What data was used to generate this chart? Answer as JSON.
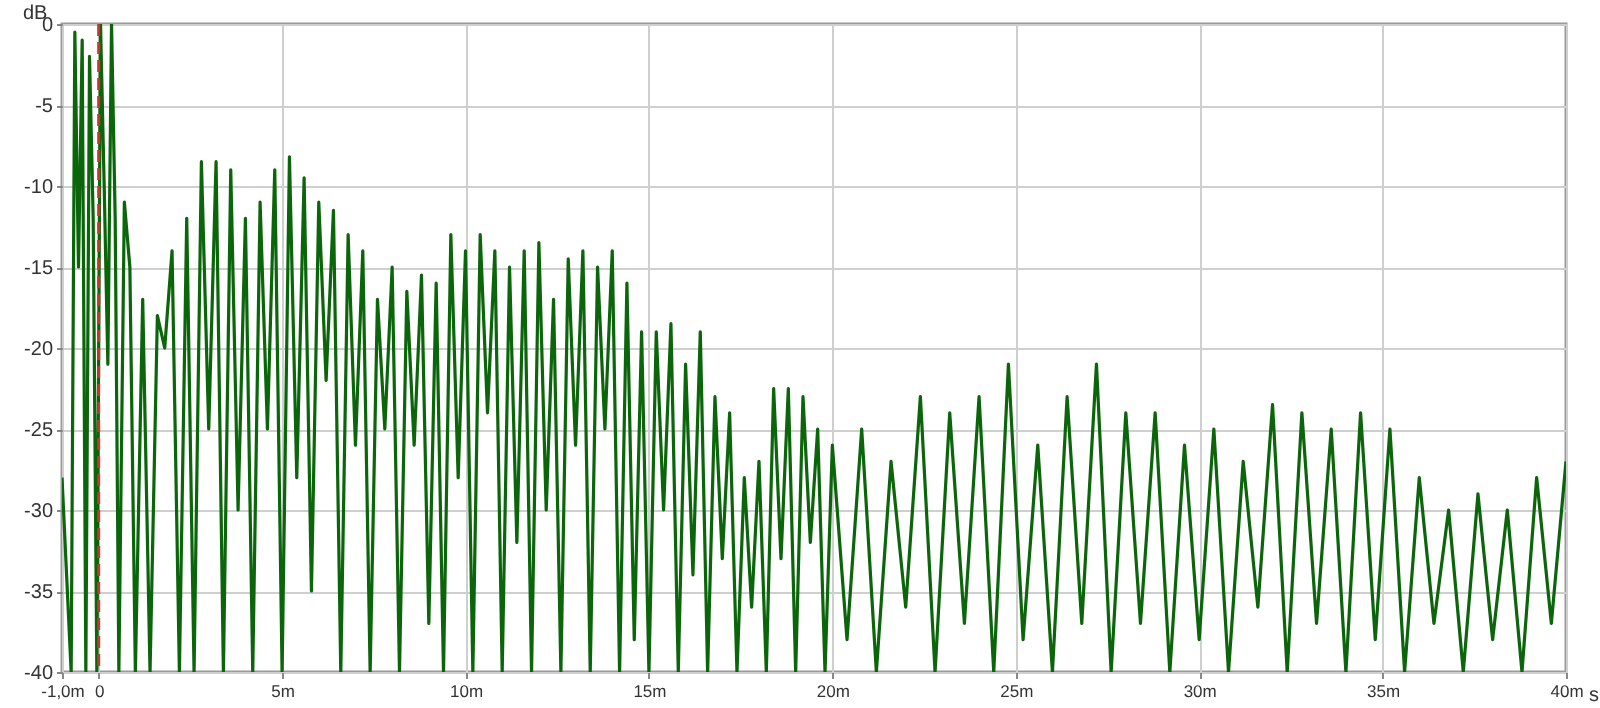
{
  "chart_data": {
    "type": "line",
    "xlabel": "s",
    "ylabel": "dB",
    "xlim": [
      -1,
      40
    ],
    "ylim": [
      -40,
      0
    ],
    "xticks": [
      {
        "value": -1,
        "label": "-1,0m"
      },
      0,
      {
        "value": 5,
        "label": "5m"
      },
      {
        "value": 10,
        "label": "10m"
      },
      {
        "value": 15,
        "label": "15m"
      },
      {
        "value": 20,
        "label": "20m"
      },
      {
        "value": 25,
        "label": "25m"
      },
      {
        "value": 30,
        "label": "30m"
      },
      {
        "value": 35,
        "label": "35m"
      },
      {
        "value": 40,
        "label": "40m"
      }
    ],
    "yticks": [
      -40,
      -35,
      -30,
      -25,
      -20,
      -15,
      -10,
      -5,
      0
    ],
    "grid": true,
    "line_style": "solid",
    "ref_lines": [
      {
        "axis": "x",
        "value": 0,
        "color": "#c0392b",
        "line_style": "dashed"
      }
    ],
    "series": [
      {
        "color": "#0b650b",
        "x": [
          -1.0,
          -0.75,
          -0.65,
          -0.55,
          -0.45,
          -0.35,
          -0.25,
          -0.15,
          -0.05,
          0.05,
          0.15,
          0.25,
          0.35,
          0.45,
          0.55,
          0.7,
          0.85,
          1.0,
          1.2,
          1.4,
          1.6,
          1.8,
          2.0,
          2.2,
          2.4,
          2.6,
          2.8,
          3.0,
          3.2,
          3.4,
          3.6,
          3.8,
          4.0,
          4.2,
          4.4,
          4.6,
          4.8,
          5.0,
          5.2,
          5.4,
          5.6,
          5.8,
          6.0,
          6.2,
          6.4,
          6.6,
          6.8,
          7.0,
          7.2,
          7.4,
          7.6,
          7.8,
          8.0,
          8.2,
          8.4,
          8.6,
          8.8,
          9.0,
          9.2,
          9.4,
          9.6,
          9.8,
          10.0,
          10.2,
          10.4,
          10.6,
          10.8,
          11.0,
          11.2,
          11.4,
          11.6,
          11.8,
          12.0,
          12.2,
          12.4,
          12.6,
          12.8,
          13.0,
          13.2,
          13.4,
          13.6,
          13.8,
          14.0,
          14.2,
          14.4,
          14.6,
          14.8,
          15.0,
          15.2,
          15.4,
          15.6,
          15.8,
          16.0,
          16.2,
          16.4,
          16.6,
          16.8,
          17.0,
          17.2,
          17.4,
          17.6,
          17.8,
          18.0,
          18.2,
          18.4,
          18.6,
          18.8,
          19.0,
          19.2,
          19.4,
          19.6,
          19.8,
          20.0,
          20.4,
          20.8,
          21.2,
          21.6,
          22.0,
          22.4,
          22.8,
          23.2,
          23.6,
          24.0,
          24.4,
          24.8,
          25.2,
          25.6,
          26.0,
          26.4,
          26.8,
          27.2,
          27.6,
          28.0,
          28.4,
          28.8,
          29.2,
          29.6,
          30.0,
          30.4,
          30.8,
          31.2,
          31.6,
          32.0,
          32.4,
          32.8,
          33.2,
          33.6,
          34.0,
          34.4,
          34.8,
          35.2,
          35.6,
          36.0,
          36.4,
          36.8,
          37.2,
          37.6,
          38.0,
          38.4,
          38.8,
          39.2,
          39.6,
          40.0
        ],
        "values": [
          -28,
          -40,
          -0.5,
          -15,
          -1,
          -40,
          -2,
          -12,
          -40,
          0,
          -10,
          -21,
          0,
          -12,
          -40,
          -11,
          -15,
          -40,
          -17,
          -40,
          -18,
          -20,
          -14,
          -40,
          -12,
          -40,
          -8.5,
          -25,
          -8.5,
          -40,
          -9,
          -30,
          -12,
          -40,
          -11,
          -25,
          -9,
          -40,
          -8.2,
          -28,
          -9.5,
          -35,
          -11,
          -22,
          -11.5,
          -40,
          -13,
          -26,
          -14,
          -40,
          -17,
          -25,
          -15,
          -40,
          -16.5,
          -26,
          -15.5,
          -37,
          -16,
          -40,
          -13,
          -28,
          -14,
          -40,
          -13,
          -24,
          -14,
          -40,
          -15,
          -32,
          -14,
          -40,
          -13.5,
          -30,
          -17,
          -40,
          -14.5,
          -26,
          -14,
          -40,
          -15,
          -25,
          -14,
          -40,
          -16,
          -38,
          -19,
          -40,
          -19,
          -30,
          -18.5,
          -40,
          -21,
          -34,
          -19,
          -40,
          -23,
          -33,
          -24,
          -40,
          -28,
          -36,
          -27,
          -40,
          -22.5,
          -33,
          -22.5,
          -40,
          -23,
          -32,
          -25,
          -40,
          -26,
          -38,
          -25,
          -40,
          -27,
          -36,
          -23,
          -40,
          -24,
          -37,
          -23,
          -40,
          -21,
          -38,
          -26,
          -40,
          -23,
          -37,
          -21,
          -40,
          -24,
          -37,
          -24,
          -40,
          -26,
          -38,
          -25,
          -40,
          -27,
          -36,
          -23.5,
          -40,
          -24,
          -37,
          -25,
          -40,
          -24,
          -38,
          -25,
          -40,
          -28,
          -37,
          -30,
          -40,
          -29,
          -38,
          -30,
          -40,
          -28,
          -37,
          -27
        ]
      }
    ]
  }
}
